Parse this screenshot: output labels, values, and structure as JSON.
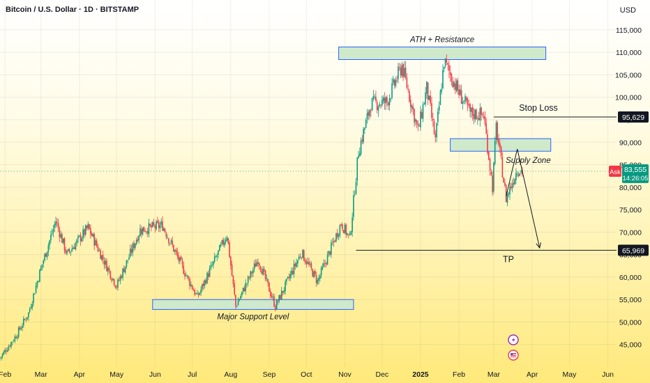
{
  "header": {
    "title": "Bitcoin / U.S. Dollar · 1D · BITSTAMP",
    "currency": "USD"
  },
  "chart_data": {
    "type": "candlestick",
    "xlabel": "",
    "ylabel": "",
    "ylim": [
      40000,
      117000
    ],
    "y_ticks": [
      45000,
      50000,
      55000,
      60000,
      65000,
      70000,
      75000,
      80000,
      85000,
      90000,
      95000,
      100000,
      105000,
      110000,
      115000
    ],
    "y_tick_labels": [
      "45,000",
      "50,000",
      "55,000",
      "60,000",
      "65,000",
      "70,000",
      "75,000",
      "80,000",
      "85,000",
      "90,000",
      "95,000",
      "100,000",
      "105,000",
      "110,000",
      "115,000"
    ],
    "x_range": [
      "2024-01-28",
      "2025-06-08"
    ],
    "x_ticks": [
      {
        "date": "2024-02-01",
        "label": "Feb"
      },
      {
        "date": "2024-03-01",
        "label": "Mar"
      },
      {
        "date": "2024-04-01",
        "label": "Apr"
      },
      {
        "date": "2024-05-01",
        "label": "May"
      },
      {
        "date": "2024-06-01",
        "label": "Jun"
      },
      {
        "date": "2024-07-01",
        "label": "Jul"
      },
      {
        "date": "2024-08-01",
        "label": "Aug"
      },
      {
        "date": "2024-09-01",
        "label": "Sep"
      },
      {
        "date": "2024-10-01",
        "label": "Oct"
      },
      {
        "date": "2024-11-01",
        "label": "Nov"
      },
      {
        "date": "2024-12-01",
        "label": "Dec"
      },
      {
        "date": "2025-01-01",
        "label": "2025"
      },
      {
        "date": "2025-02-01",
        "label": "Feb"
      },
      {
        "date": "2025-03-01",
        "label": "Mar"
      },
      {
        "date": "2025-04-01",
        "label": "Apr"
      },
      {
        "date": "2025-05-01",
        "label": "May"
      },
      {
        "date": "2025-06-01",
        "label": "Jun"
      }
    ],
    "price_path": [
      [
        "2024-01-28",
        42000
      ],
      [
        "2024-02-10",
        47000
      ],
      [
        "2024-02-20",
        52000
      ],
      [
        "2024-03-01",
        62000
      ],
      [
        "2024-03-13",
        72500
      ],
      [
        "2024-03-22",
        65000
      ],
      [
        "2024-04-08",
        71000
      ],
      [
        "2024-04-20",
        64000
      ],
      [
        "2024-05-01",
        58000
      ],
      [
        "2024-05-20",
        70500
      ],
      [
        "2024-06-07",
        71500
      ],
      [
        "2024-06-25",
        61000
      ],
      [
        "2024-07-05",
        55500
      ],
      [
        "2024-07-29",
        69500
      ],
      [
        "2024-08-05",
        53500
      ],
      [
        "2024-08-23",
        64000
      ],
      [
        "2024-09-06",
        53500
      ],
      [
        "2024-09-27",
        65500
      ],
      [
        "2024-10-10",
        59000
      ],
      [
        "2024-10-29",
        72000
      ],
      [
        "2024-11-05",
        68500
      ],
      [
        "2024-11-12",
        88000
      ],
      [
        "2024-11-22",
        98500
      ],
      [
        "2024-12-05",
        99000
      ],
      [
        "2024-12-17",
        107000
      ],
      [
        "2024-12-30",
        92500
      ],
      [
        "2025-01-06",
        102000
      ],
      [
        "2025-01-13",
        90500
      ],
      [
        "2025-01-20",
        108000
      ],
      [
        "2025-02-01",
        101000
      ],
      [
        "2025-02-10",
        96500
      ],
      [
        "2025-02-21",
        96000
      ],
      [
        "2025-02-28",
        80000
      ],
      [
        "2025-03-03",
        93500
      ],
      [
        "2025-03-11",
        77500
      ],
      [
        "2025-03-20",
        84000
      ],
      [
        "2025-03-24",
        83555
      ]
    ],
    "current_price": {
      "label": "Ask",
      "value": 83555,
      "price_label": "83,555",
      "countdown": "14:26:05"
    },
    "price_tags": [
      {
        "value": 95629,
        "label": "95,629"
      },
      {
        "value": 65969,
        "label": "65,969"
      }
    ],
    "zones": [
      {
        "name": "ATH + Resistance",
        "x0": "2024-10-27",
        "x1": "2025-04-12",
        "y0": 108400,
        "y1": 111200
      },
      {
        "name": "Supply Zone",
        "x0": "2025-01-25",
        "x1": "2025-04-16",
        "y0": 88000,
        "y1": 90800
      },
      {
        "name": "Major Support Level",
        "x0": "2024-05-30",
        "x1": "2024-11-08",
        "y0": 52800,
        "y1": 55000
      }
    ],
    "levels": [
      {
        "name": "Stop Loss",
        "value": 95629,
        "x0": "2025-03-01"
      },
      {
        "name": "TP",
        "value": 65969,
        "x0": "2024-11-10"
      }
    ],
    "projection": [
      [
        "2025-03-11",
        78000
      ],
      [
        "2025-03-20",
        88500
      ],
      [
        "2025-04-07",
        66500
      ]
    ],
    "colors": {
      "up": "#089981",
      "down": "#f23645",
      "zone_fill": "#cfe9cb",
      "zone_border": "#2962ff",
      "line": "#131722",
      "ask": "#f23645",
      "last": "#089981"
    }
  }
}
